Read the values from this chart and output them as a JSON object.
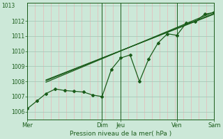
{
  "background_color": "#cce8d8",
  "plot_bg_color": "#cce8d8",
  "grid_color_h": "#a8c8b8",
  "grid_color_v": "#e8b8b8",
  "line_color": "#1a5c1a",
  "xlabel": "Pression niveau de la mer( hPa )",
  "xlim": [
    0,
    120
  ],
  "ylim": [
    1005.5,
    1013.2
  ],
  "yticks": [
    1006,
    1007,
    1008,
    1009,
    1010,
    1011,
    1012
  ],
  "ytop_label": "1013",
  "xtick_positions": [
    0,
    48,
    60,
    96,
    120
  ],
  "xtick_labels": [
    "Mer",
    "Dim",
    "Jeu",
    "Ven",
    "Sam"
  ],
  "vlines_dark": [
    0,
    48,
    60,
    96,
    120
  ],
  "n_vgrid": 25,
  "series_main": {
    "x": [
      0,
      6,
      12,
      18,
      24,
      30,
      36,
      42,
      48,
      54,
      60,
      66,
      72,
      78,
      84,
      90,
      96,
      102,
      108,
      114,
      120
    ],
    "y": [
      1006.2,
      1006.7,
      1007.2,
      1007.5,
      1007.4,
      1007.35,
      1007.3,
      1007.1,
      1007.0,
      1008.8,
      1009.55,
      1009.75,
      1008.0,
      1009.5,
      1010.55,
      1011.15,
      1011.05,
      1011.85,
      1011.95,
      1012.45,
      1012.55
    ]
  },
  "series_straight1": {
    "x": [
      12,
      120
    ],
    "y": [
      1008.05,
      1012.5
    ]
  },
  "series_straight2": {
    "x": [
      12,
      120
    ],
    "y": [
      1008.1,
      1012.45
    ]
  },
  "series_straight3": {
    "x": [
      12,
      120
    ],
    "y": [
      1007.95,
      1012.6
    ]
  }
}
